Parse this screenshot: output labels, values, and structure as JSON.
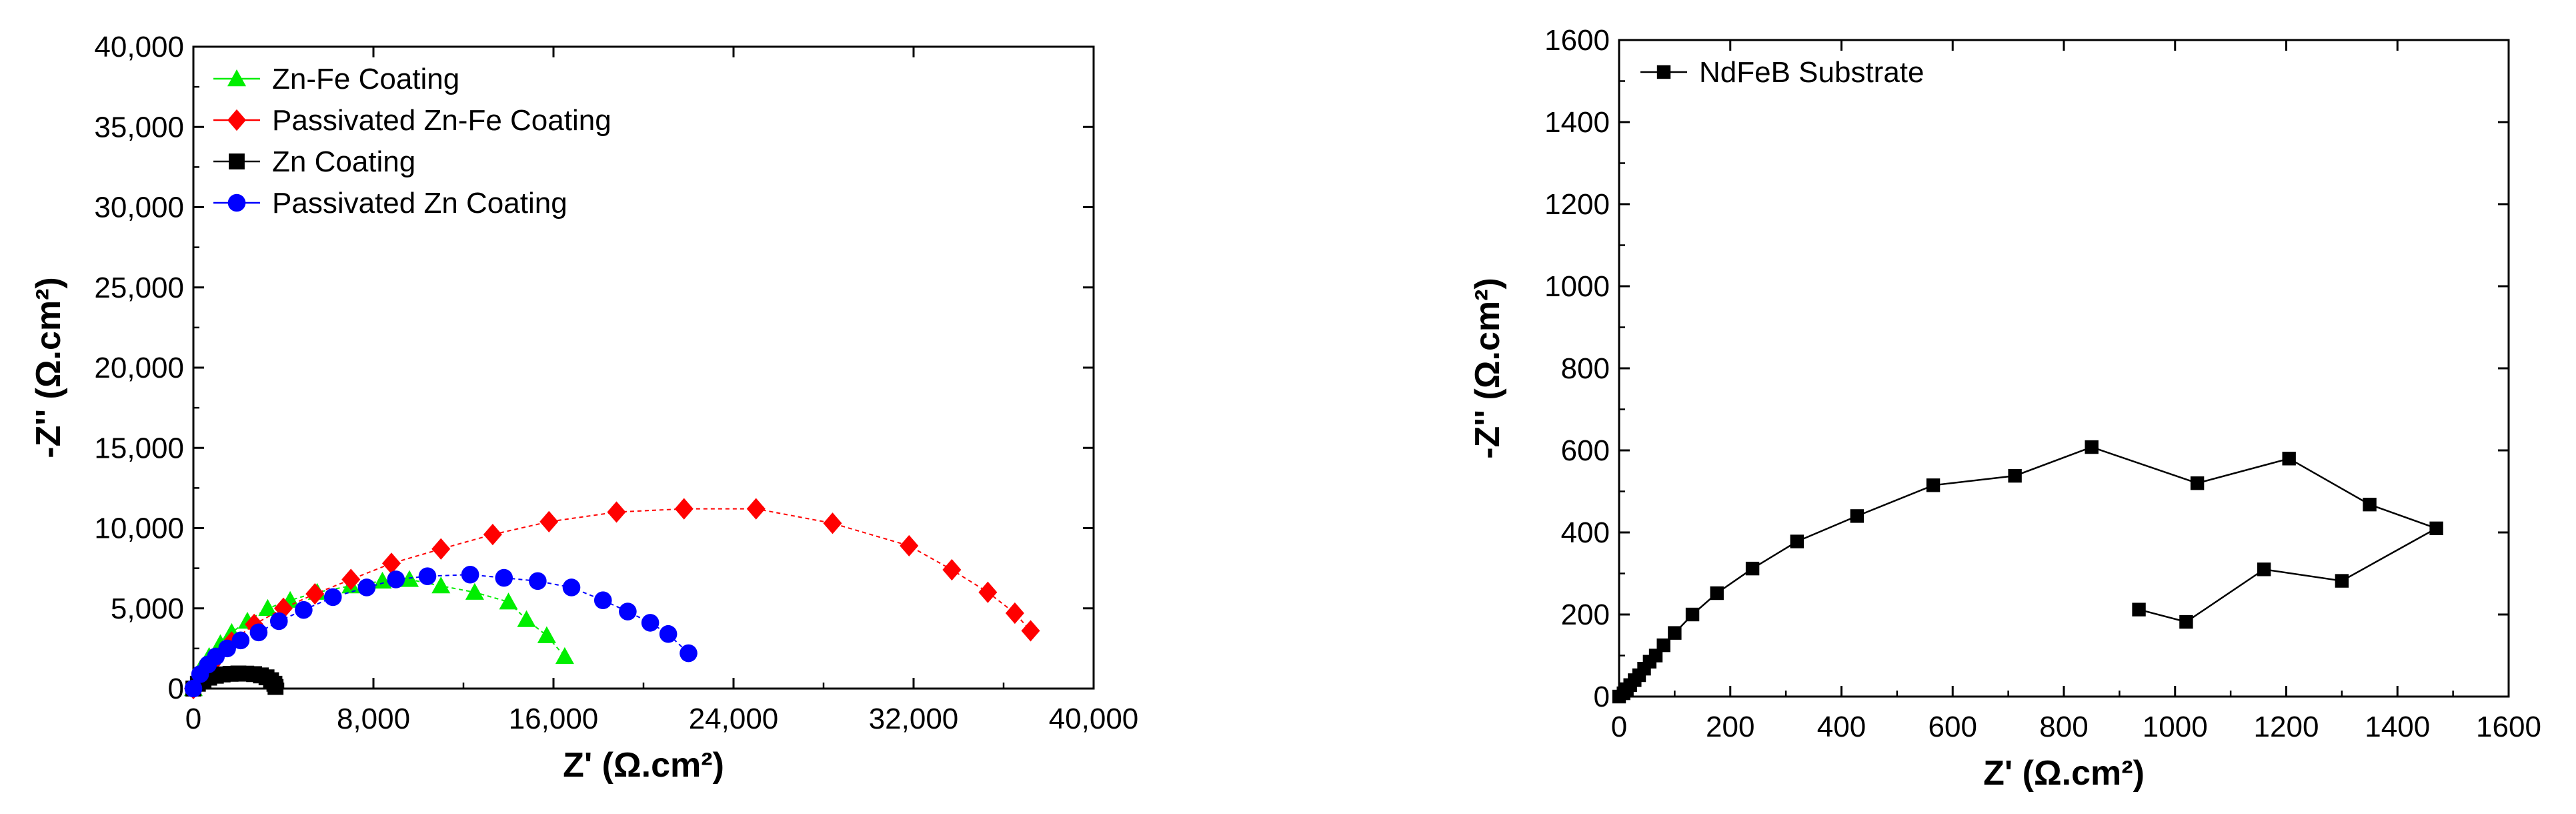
{
  "chart_data": [
    {
      "type": "scatter",
      "title": "",
      "xlabel": "Z' (Ω.cm²)",
      "ylabel": "-Z'' (Ω.cm²)",
      "xlim": [
        0,
        40000
      ],
      "ylim": [
        0,
        40000
      ],
      "xticks": [
        "0",
        "8,000",
        "16,000",
        "24,000",
        "32,000",
        "40,000"
      ],
      "yticks": [
        "0",
        "5,000",
        "10,000",
        "15,000",
        "20,000",
        "25,000",
        "30,000",
        "35,000",
        "40,000"
      ],
      "legend_position": "top-left",
      "series": [
        {
          "name": "Zn-Fe Coating",
          "marker": "triangle",
          "color": "#00ee00",
          "points": [
            [
              0,
              0
            ],
            [
              300,
              1200
            ],
            [
              700,
              2000
            ],
            [
              1200,
              2800
            ],
            [
              1700,
              3500
            ],
            [
              2400,
              4200
            ],
            [
              3300,
              5000
            ],
            [
              4300,
              5500
            ],
            [
              5500,
              6000
            ],
            [
              7000,
              6400
            ],
            [
              8400,
              6700
            ],
            [
              9600,
              6800
            ],
            [
              11000,
              6400
            ],
            [
              12500,
              6000
            ],
            [
              14000,
              5400
            ],
            [
              14800,
              4300
            ],
            [
              15700,
              3300
            ],
            [
              16500,
              2000
            ]
          ]
        },
        {
          "name": "Passivated Zn-Fe Coating",
          "marker": "diamond",
          "color": "#ff0000",
          "points": [
            [
              0,
              0
            ],
            [
              800,
              1500
            ],
            [
              1700,
              2900
            ],
            [
              2700,
              4000
            ],
            [
              4000,
              5000
            ],
            [
              5400,
              5900
            ],
            [
              7000,
              6800
            ],
            [
              8800,
              7800
            ],
            [
              11000,
              8700
            ],
            [
              13300,
              9600
            ],
            [
              15800,
              10400
            ],
            [
              18800,
              11000
            ],
            [
              21800,
              11200
            ],
            [
              25000,
              11200
            ],
            [
              28400,
              10300
            ],
            [
              31800,
              8900
            ],
            [
              33700,
              7400
            ],
            [
              35300,
              6000
            ],
            [
              36500,
              4700
            ],
            [
              37200,
              3600
            ]
          ]
        },
        {
          "name": "Zn Coating",
          "marker": "square",
          "color": "#000000",
          "points": [
            [
              0,
              0
            ],
            [
              200,
              300
            ],
            [
              450,
              500
            ],
            [
              700,
              680
            ],
            [
              1000,
              800
            ],
            [
              1300,
              880
            ],
            [
              1650,
              920
            ],
            [
              2000,
              940
            ],
            [
              2350,
              930
            ],
            [
              2700,
              900
            ],
            [
              3000,
              820
            ],
            [
              3250,
              700
            ],
            [
              3450,
              520
            ],
            [
              3600,
              300
            ],
            [
              3650,
              100
            ]
          ]
        },
        {
          "name": "Passivated Zn Coating",
          "marker": "circle",
          "color": "#0000ff",
          "points": [
            [
              0,
              0
            ],
            [
              300,
              900
            ],
            [
              650,
              1500
            ],
            [
              1000,
              2000
            ],
            [
              1500,
              2500
            ],
            [
              2100,
              3000
            ],
            [
              2900,
              3500
            ],
            [
              3800,
              4200
            ],
            [
              4900,
              4900
            ],
            [
              6200,
              5700
            ],
            [
              7700,
              6300
            ],
            [
              9000,
              6800
            ],
            [
              10400,
              7000
            ],
            [
              12300,
              7100
            ],
            [
              13800,
              6900
            ],
            [
              15300,
              6700
            ],
            [
              16800,
              6300
            ],
            [
              18200,
              5500
            ],
            [
              19300,
              4800
            ],
            [
              20300,
              4100
            ],
            [
              21100,
              3400
            ],
            [
              22000,
              2200
            ]
          ]
        }
      ]
    },
    {
      "type": "line",
      "title": "",
      "xlabel": "Z' (Ω.cm²)",
      "ylabel": "-Z'' (Ω.cm²)",
      "xlim": [
        0,
        1600
      ],
      "ylim": [
        0,
        1600
      ],
      "xticks": [
        "0",
        "200",
        "400",
        "600",
        "800",
        "1000",
        "1200",
        "1400",
        "1600"
      ],
      "yticks": [
        "0",
        "200",
        "400",
        "600",
        "800",
        "1000",
        "1200",
        "1400",
        "1600"
      ],
      "legend_position": "top-left",
      "series": [
        {
          "name": "NdFeB Substrate",
          "marker": "square",
          "color": "#000000",
          "points": [
            [
              0,
              0
            ],
            [
              8,
              8
            ],
            [
              14,
              18
            ],
            [
              20,
              28
            ],
            [
              28,
              40
            ],
            [
              36,
              52
            ],
            [
              45,
              68
            ],
            [
              55,
              85
            ],
            [
              66,
              100
            ],
            [
              80,
              125
            ],
            [
              100,
              155
            ],
            [
              132,
              200
            ],
            [
              176,
              252
            ],
            [
              240,
              312
            ],
            [
              320,
              378
            ],
            [
              428,
              440
            ],
            [
              565,
              515
            ],
            [
              712,
              538
            ],
            [
              850,
              608
            ],
            [
              1040,
              520
            ],
            [
              1205,
              580
            ],
            [
              1350,
              468
            ],
            [
              1470,
              410
            ],
            [
              1300,
              282
            ],
            [
              1160,
              310
            ],
            [
              1020,
              182
            ],
            [
              935,
              212
            ]
          ]
        }
      ]
    }
  ]
}
